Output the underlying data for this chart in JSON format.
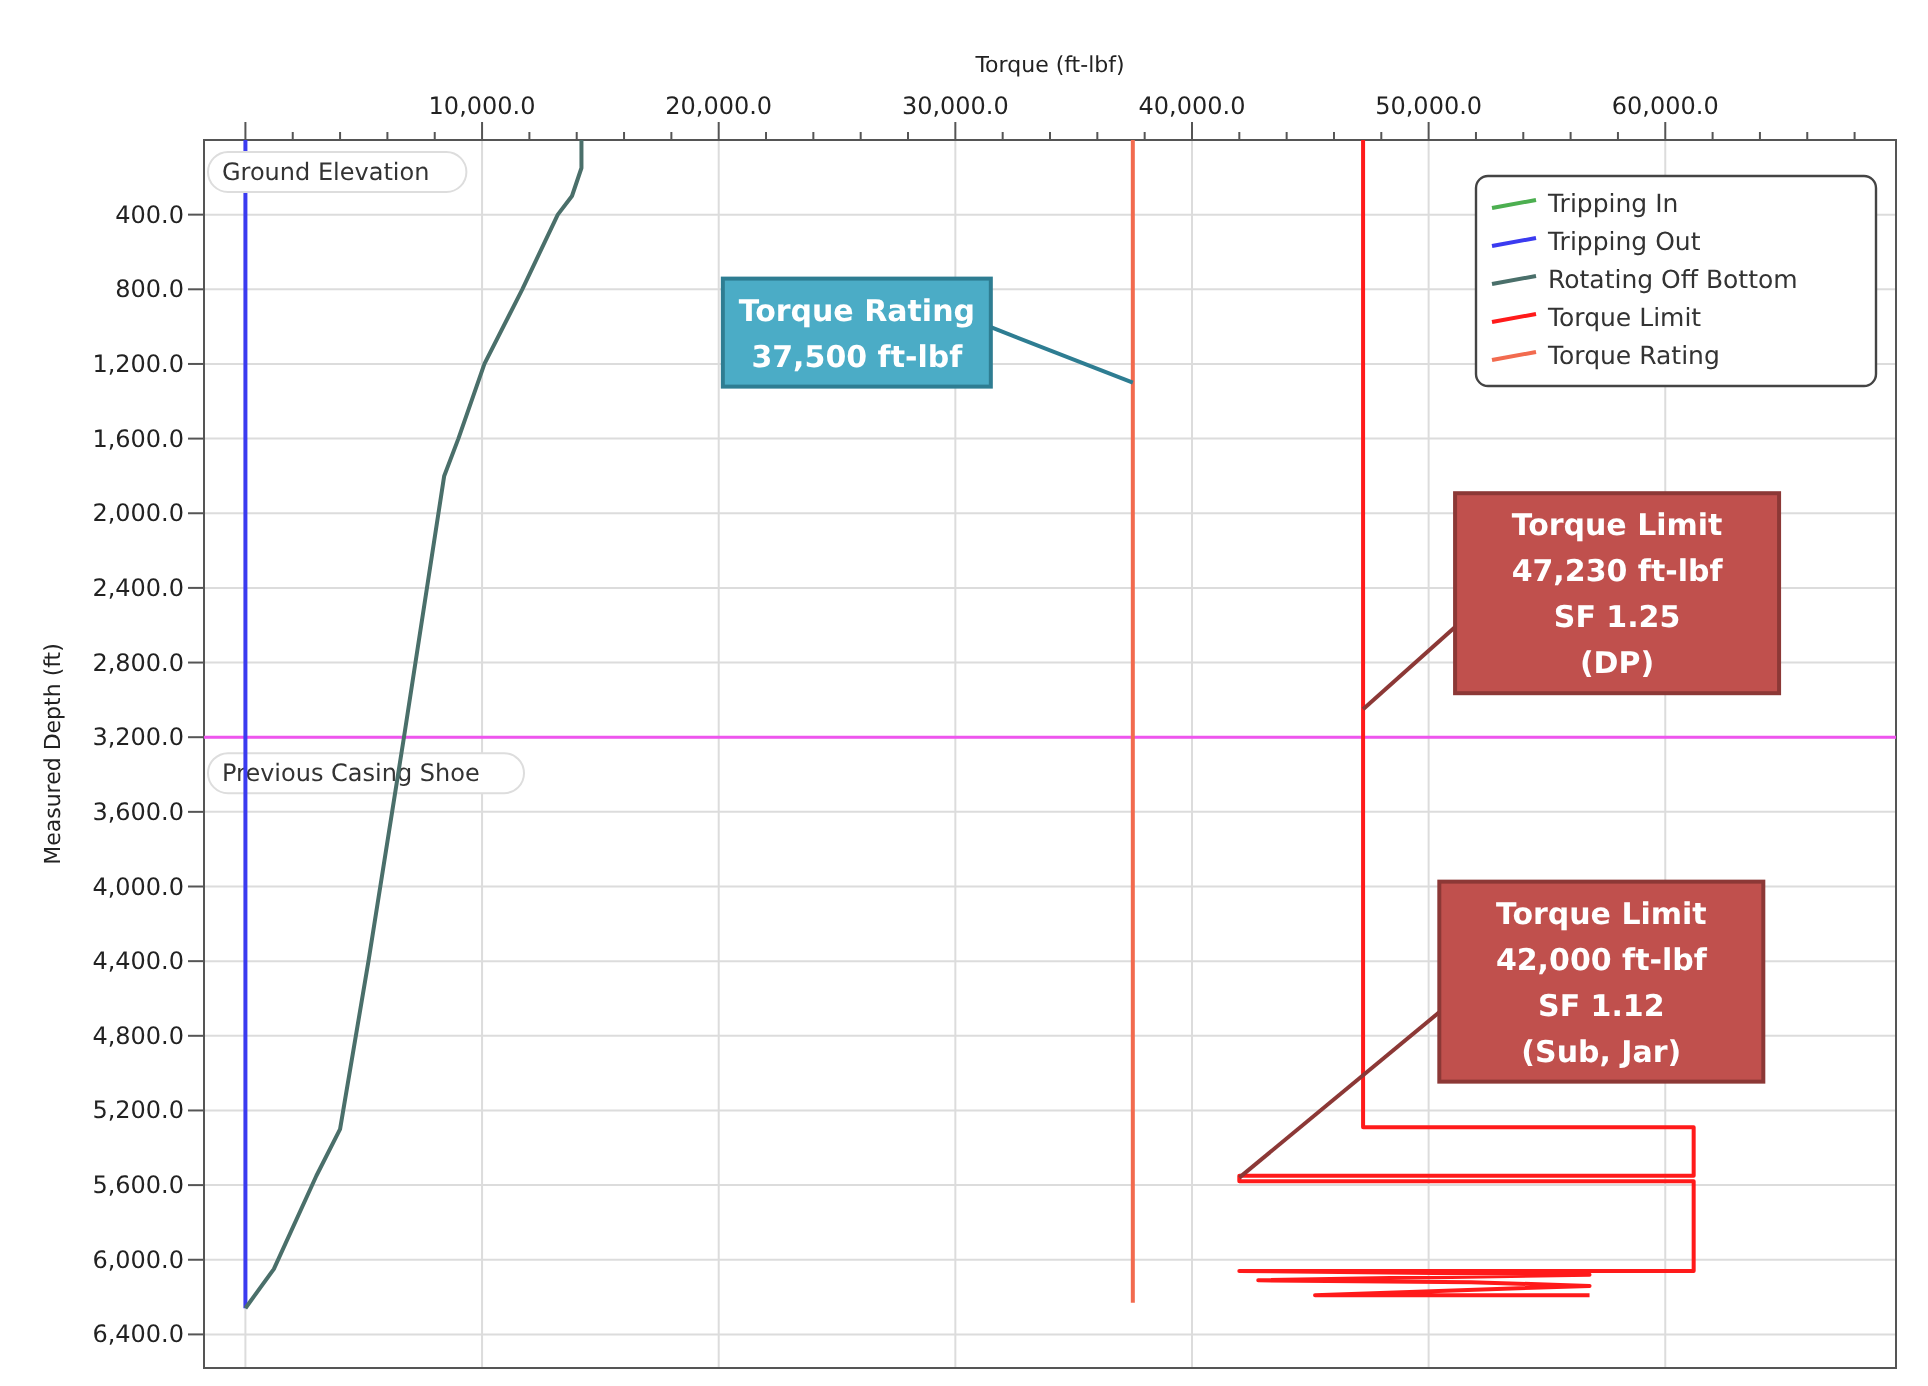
{
  "chart_data": {
    "type": "line",
    "xlabel": "Torque (ft-lbf)",
    "ylabel": "Measured Depth (ft)",
    "xlim": [
      -1750,
      69750
    ],
    "ylim": [
      6580,
      0
    ],
    "xticks": [
      {
        "value": 0,
        "label": null
      },
      {
        "value": 2000,
        "label": null
      },
      {
        "value": 4000,
        "label": null
      },
      {
        "value": 6000,
        "label": null
      },
      {
        "value": 8000,
        "label": null
      },
      {
        "value": 10000,
        "label": "10,000.0"
      },
      {
        "value": 12000,
        "label": null
      },
      {
        "value": 14000,
        "label": null
      },
      {
        "value": 16000,
        "label": null
      },
      {
        "value": 18000,
        "label": null
      },
      {
        "value": 20000,
        "label": "20,000.0"
      },
      {
        "value": 22000,
        "label": null
      },
      {
        "value": 24000,
        "label": null
      },
      {
        "value": 26000,
        "label": null
      },
      {
        "value": 28000,
        "label": null
      },
      {
        "value": 30000,
        "label": "30,000.0"
      },
      {
        "value": 32000,
        "label": null
      },
      {
        "value": 34000,
        "label": null
      },
      {
        "value": 36000,
        "label": null
      },
      {
        "value": 38000,
        "label": null
      },
      {
        "value": 40000,
        "label": "40,000.0"
      },
      {
        "value": 42000,
        "label": null
      },
      {
        "value": 44000,
        "label": null
      },
      {
        "value": 46000,
        "label": null
      },
      {
        "value": 48000,
        "label": null
      },
      {
        "value": 50000,
        "label": "50,000.0"
      },
      {
        "value": 52000,
        "label": null
      },
      {
        "value": 54000,
        "label": null
      },
      {
        "value": 56000,
        "label": null
      },
      {
        "value": 58000,
        "label": null
      },
      {
        "value": 60000,
        "label": "60,000.0"
      },
      {
        "value": 62000,
        "label": null
      },
      {
        "value": 64000,
        "label": null
      },
      {
        "value": 66000,
        "label": null
      },
      {
        "value": 68000,
        "label": null
      }
    ],
    "yticks": [
      {
        "value": 400,
        "label": "400.0"
      },
      {
        "value": 800,
        "label": "800.0"
      },
      {
        "value": 1200,
        "label": "1,200.0"
      },
      {
        "value": 1600,
        "label": "1,600.0"
      },
      {
        "value": 2000,
        "label": "2,000.0"
      },
      {
        "value": 2400,
        "label": "2,400.0"
      },
      {
        "value": 2800,
        "label": "2,800.0"
      },
      {
        "value": 3200,
        "label": "3,200.0"
      },
      {
        "value": 3600,
        "label": "3,600.0"
      },
      {
        "value": 4000,
        "label": "4,000.0"
      },
      {
        "value": 4400,
        "label": "4,400.0"
      },
      {
        "value": 4800,
        "label": "4,800.0"
      },
      {
        "value": 5200,
        "label": "5,200.0"
      },
      {
        "value": 5600,
        "label": "5,600.0"
      },
      {
        "value": 6000,
        "label": "6,000.0"
      },
      {
        "value": 6400,
        "label": "6,400.0"
      }
    ],
    "grid": true,
    "legend": "top right",
    "marker": "none",
    "line_style": "solid",
    "series": [
      {
        "name": "Tripping In",
        "color": "#4caf50",
        "x": [
          null,
          null
        ],
        "values": [
          null,
          null
        ]
      },
      {
        "name": "Tripping Out",
        "color": "#3b3bf0",
        "x": [
          0,
          0
        ],
        "values": [
          0,
          6260
        ]
      },
      {
        "name": "Rotating Off Bottom",
        "color": "#4a6f6a",
        "x": [
          14200,
          14200,
          13800,
          13200,
          11700,
          10100,
          9000,
          8400,
          6700,
          5200,
          4000,
          3000,
          1200,
          0
        ],
        "values": [
          0,
          150,
          300,
          400,
          800,
          1200,
          1600,
          1800,
          3200,
          4400,
          5300,
          5550,
          6050,
          6260
        ]
      },
      {
        "name": "Torque Limit",
        "color": "#ff1a1a",
        "x": [
          47230,
          47230,
          61200,
          61200,
          42000,
          42000,
          61200,
          61200,
          42000,
          56800,
          42800,
          51800,
          56800,
          45200,
          56800
        ],
        "values": [
          0,
          5290,
          5290,
          5550,
          5550,
          5580,
          5580,
          6060,
          6060,
          6080,
          6110,
          6120,
          6140,
          6190,
          6190
        ]
      },
      {
        "name": "Torque Rating",
        "color": "#f26b4f",
        "x": [
          37500,
          37500
        ],
        "values": [
          0,
          6230
        ]
      }
    ],
    "ref_lines": [
      {
        "axis": "y",
        "value": 3200,
        "label": "Previous Casing Shoe",
        "color": "#ee55ee"
      }
    ],
    "annotations": [
      "Ground Elevation",
      {
        "text": "Torque Rating\n37,500 ft-lbf",
        "x": 37500,
        "y": 1300
      },
      {
        "text": "Torque Limit\n47,230 ft-lbf\nSF 1.25\n(DP)",
        "x": 47230,
        "y": 3050
      },
      {
        "text": "Torque Limit\n42,000 ft-lbf\nSF 1.12\n(Sub, Jar)",
        "x": 42000,
        "y": 5560
      }
    ]
  }
}
